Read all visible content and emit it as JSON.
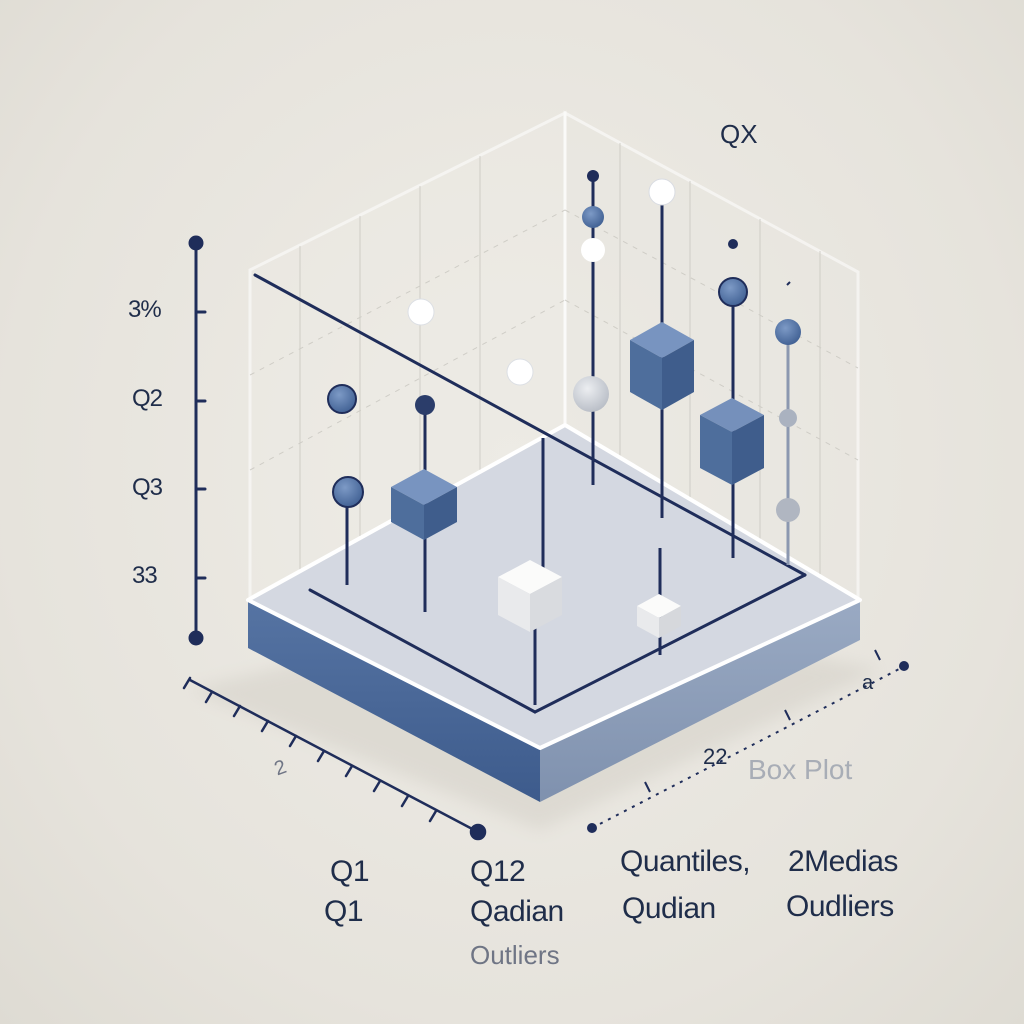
{
  "chart_data": {
    "type": "box",
    "title": "Box Plot",
    "corner_label": "QX",
    "y_tick_labels": [
      "3%",
      "Q2",
      "Q3",
      "33"
    ],
    "x_axis_labels": [
      "2",
      "a"
    ],
    "small_label": "22",
    "bottom_labels": [
      [
        "Q1",
        "Q1"
      ],
      [
        "Q12",
        "Qadian",
        "Outliers"
      ],
      [
        "Quantiles,",
        "Qudian"
      ],
      [
        "2Medias",
        "Oudliers"
      ]
    ],
    "colors": {
      "background": "#e8e6df",
      "navy": "#1f2d5a",
      "box_blue": "#4e6e9c",
      "box_white": "#f4f4f2",
      "platform_top": "#d3d7e0",
      "platform_side": "#4a6a9a",
      "outlier_grey": "#c9ccd2"
    }
  }
}
